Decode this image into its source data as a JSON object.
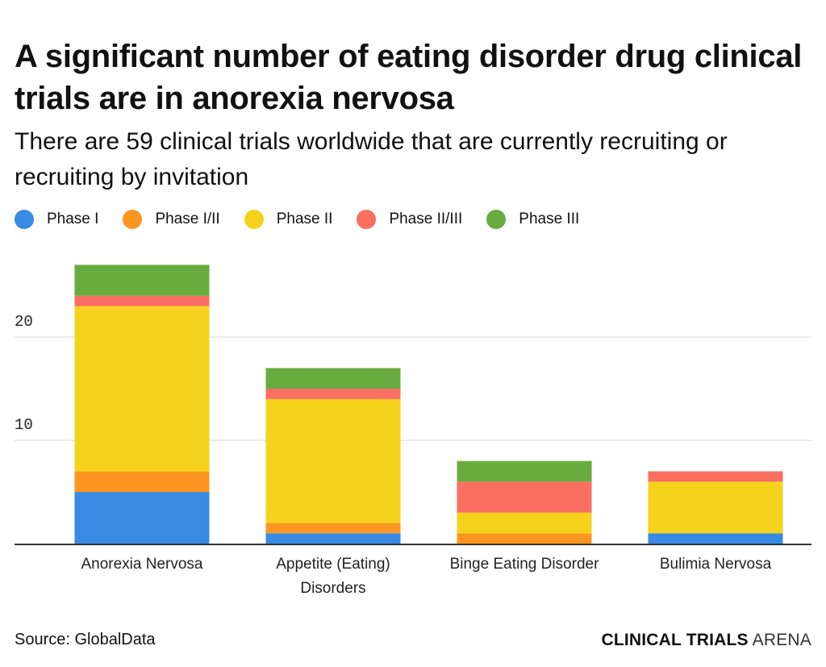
{
  "header": {
    "title": "A significant number of eating disorder drug clinical trials are in anorexia nervosa",
    "subtitle": "There are 59 clinical trials worldwide that are currently recruiting or recruiting by invitation"
  },
  "footer": {
    "source": "Source: GlobalData",
    "brand_bold": "CLINICAL TRIALS",
    "brand_light": "ARENA"
  },
  "chart_data": {
    "type": "bar",
    "stacked": true,
    "title": "A significant number of eating disorder drug clinical trials are in anorexia nervosa",
    "subtitle": "There are 59 clinical trials worldwide that are currently recruiting or recruiting by invitation",
    "xlabel": "",
    "ylabel": "",
    "ylim": [
      0,
      27
    ],
    "yticks": [
      10,
      20
    ],
    "grid": true,
    "legend_position": "top-left",
    "categories": [
      [
        "Anorexia Nervosa"
      ],
      [
        "Appetite (Eating)",
        "Disorders"
      ],
      [
        "Binge Eating Disorder"
      ],
      [
        "Bulimia Nervosa"
      ]
    ],
    "series": [
      {
        "name": "Phase I",
        "color": "#398ae3",
        "values": [
          5,
          1,
          0,
          1
        ]
      },
      {
        "name": "Phase I/II",
        "color": "#fd9621",
        "values": [
          2,
          1,
          1,
          0
        ]
      },
      {
        "name": "Phase II",
        "color": "#f5d31c",
        "values": [
          16,
          12,
          2,
          5
        ]
      },
      {
        "name": "Phase II/III",
        "color": "#fb6e62",
        "values": [
          1,
          1,
          3,
          1
        ]
      },
      {
        "name": "Phase III",
        "color": "#68ac3f",
        "values": [
          3,
          2,
          2,
          0
        ]
      }
    ]
  }
}
